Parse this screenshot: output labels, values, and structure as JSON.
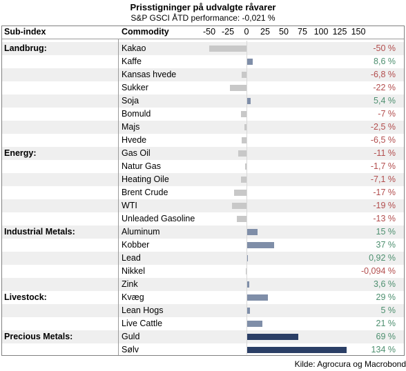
{
  "header": {
    "title": "Prisstigninger på udvalgte råvarer",
    "subtitle": "S&P GSCI ÅTD performance: -0,021 %",
    "col_subindex": "Sub-index",
    "col_commodity": "Commodity",
    "source": "Kilde: Agrocura og Macrobond"
  },
  "colors": {
    "negative_bar": "#c8c8c8",
    "positive_bar_light": "#7f8ea8",
    "positive_bar_dark": "#2b3f66",
    "negative_text": "#b24d4d",
    "positive_text": "#4d8f6f"
  },
  "chart_data": {
    "type": "bar",
    "orientation": "horizontal",
    "x_ticks": [
      "-50",
      "-25",
      "0",
      "25",
      "50",
      "75",
      "100",
      "125",
      "150"
    ],
    "xlim": [
      -50,
      150
    ],
    "rows": [
      {
        "group": "Landbrug:",
        "commodity": "Kakao",
        "value": -50,
        "label": "-50 %"
      },
      {
        "group": "",
        "commodity": "Kaffe",
        "value": 8.6,
        "label": "8,6 %"
      },
      {
        "group": "",
        "commodity": "Kansas hvede",
        "value": -6.8,
        "label": "-6,8 %"
      },
      {
        "group": "",
        "commodity": "Sukker",
        "value": -22,
        "label": "-22 %"
      },
      {
        "group": "",
        "commodity": "Soja",
        "value": 5.4,
        "label": "5,4 %"
      },
      {
        "group": "",
        "commodity": "Bomuld",
        "value": -7,
        "label": "-7 %"
      },
      {
        "group": "",
        "commodity": "Majs",
        "value": -2.5,
        "label": "-2,5 %"
      },
      {
        "group": "",
        "commodity": "Hvede",
        "value": -6.5,
        "label": "-6,5 %"
      },
      {
        "group": "Energy:",
        "commodity": "Gas Oil",
        "value": -11,
        "label": "-11 %"
      },
      {
        "group": "",
        "commodity": "Natur Gas",
        "value": -1.7,
        "label": "-1,7 %"
      },
      {
        "group": "",
        "commodity": "Heating Oile",
        "value": -7.1,
        "label": "-7,1 %"
      },
      {
        "group": "",
        "commodity": "Brent Crude",
        "value": -17,
        "label": "-17 %"
      },
      {
        "group": "",
        "commodity": "WTI",
        "value": -19,
        "label": "-19 %"
      },
      {
        "group": "",
        "commodity": "Unleaded Gasoline",
        "value": -13,
        "label": "-13 %"
      },
      {
        "group": "Industrial Metals:",
        "commodity": "Aluminum",
        "value": 15,
        "label": "15 %"
      },
      {
        "group": "",
        "commodity": "Kobber",
        "value": 37,
        "label": "37 %"
      },
      {
        "group": "",
        "commodity": "Lead",
        "value": 0.92,
        "label": "0,92 %"
      },
      {
        "group": "",
        "commodity": "Nikkel",
        "value": -0.094,
        "label": "-0,094 %"
      },
      {
        "group": "",
        "commodity": "Zink",
        "value": 3.6,
        "label": "3,6 %"
      },
      {
        "group": "Livestock:",
        "commodity": "Kvæg",
        "value": 29,
        "label": "29 %"
      },
      {
        "group": "",
        "commodity": "Lean Hogs",
        "value": 5,
        "label": "5 %"
      },
      {
        "group": "",
        "commodity": "Live Cattle",
        "value": 21,
        "label": "21 %"
      },
      {
        "group": "Precious Metals:",
        "commodity": "Guld",
        "value": 69,
        "label": "69 %"
      },
      {
        "group": "",
        "commodity": "Sølv",
        "value": 134,
        "label": "134 %"
      }
    ]
  }
}
